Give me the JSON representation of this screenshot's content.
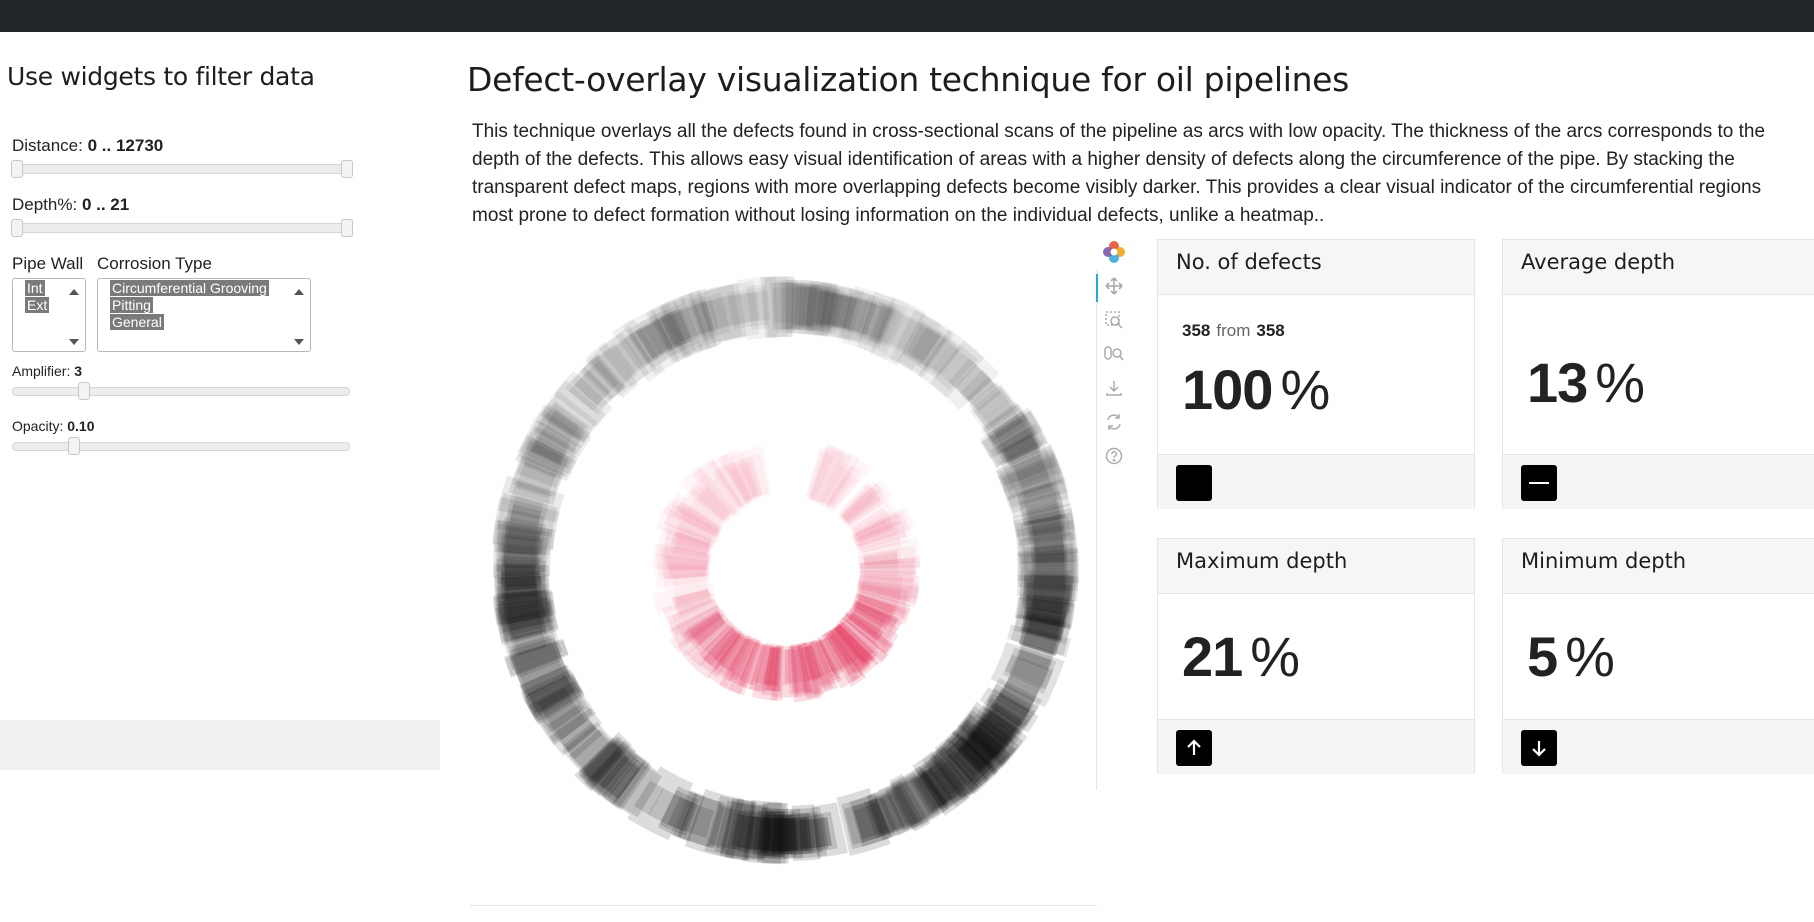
{
  "sidebar": {
    "title": "Use widgets to filter data",
    "distance": {
      "label": "Distance:",
      "value": "0 .. 12730",
      "range": [
        0,
        12730
      ],
      "selected": [
        0,
        12730
      ]
    },
    "depth": {
      "label": "Depth%:",
      "value": "0 .. 21",
      "range": [
        0,
        21
      ],
      "selected": [
        0,
        21
      ]
    },
    "pipe_wall": {
      "label": "Pipe Wall",
      "options": [
        "Int",
        "Ext"
      ]
    },
    "corrosion_type": {
      "label": "Corrosion Type",
      "options": [
        "Circumferential Grooving",
        "Pitting",
        "General"
      ]
    },
    "amplifier": {
      "label": "Amplifier:",
      "value": "3",
      "fraction": 0.2
    },
    "opacity": {
      "label": "Opacity:",
      "value": "0.10",
      "fraction": 0.17
    }
  },
  "main": {
    "title": "Defect-overlay visualization technique for oil pipelines",
    "description": "This technique overlays all the defects found in cross-sectional scans of the pipeline as arcs with low opacity. The thickness of the arcs corresponds to the depth of the defects. This allows easy visual identification of areas with a higher density of defects along the circumference of the pipe. By stacking the transparent defect maps, regions with more overlapping defects become visibly darker. This provides a clear visual indicator of the circumferential regions most prone to defect formation without losing information on the individual defects, unlike a heatmap.."
  },
  "toolbar": {
    "icons": [
      "bokeh-logo-icon",
      "pan-icon",
      "box-zoom-icon",
      "wheel-zoom-icon",
      "save-icon",
      "reset-icon",
      "help-icon"
    ]
  },
  "kpis": {
    "defects": {
      "title": "No. of defects",
      "count": "358",
      "from_label": "from",
      "total": "358",
      "value": "100",
      "unit": "%",
      "icon": "stop-square-icon"
    },
    "avg_depth": {
      "title": "Average depth",
      "value": "13",
      "unit": "%",
      "icon": "minus-icon"
    },
    "max_depth": {
      "title": "Maximum depth",
      "value": "21",
      "unit": "%",
      "icon": "arrow-up-icon"
    },
    "min_depth": {
      "title": "Minimum depth",
      "value": "5",
      "unit": "%",
      "icon": "arrow-down-icon"
    }
  },
  "colors": {
    "topbar": "#22262b",
    "outer_ring": "#000000",
    "inner_ring": "#e0244f",
    "icon_bg": "#000000"
  }
}
